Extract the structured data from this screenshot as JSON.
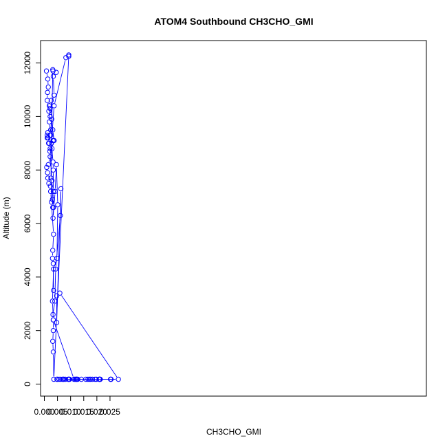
{
  "chart_data": {
    "type": "line",
    "title": "ATOM4 Southbound CH3CHO_GMI",
    "xlabel": "CH3CHO_GMI",
    "ylabel": "Altitude (m)",
    "xlim": [
      0.0,
      0.028
    ],
    "ylim": [
      0,
      12300
    ],
    "x_ticks": [
      "0.000",
      "0.005",
      "0.010",
      "0.015",
      "0.020",
      "0.025"
    ],
    "y_ticks": [
      "0",
      "2000",
      "4000",
      "6000",
      "8000",
      "10000",
      "12000"
    ],
    "grid": false,
    "legend": "none",
    "series_color": "#0000ff",
    "x": [
      0.0008,
      0.0013,
      0.0015,
      0.0012,
      0.0011,
      0.0017,
      0.0022,
      0.0019,
      0.0026,
      0.0028,
      0.0024,
      0.0021,
      0.0033,
      0.0037,
      0.0032,
      0.0036,
      0.0029,
      0.0033,
      0.0034,
      0.0034,
      0.0032,
      0.0025,
      0.0032,
      0.0033,
      0.0045,
      0.0034,
      0.0037,
      0.0022,
      0.0019,
      0.0024,
      0.0016,
      0.0013,
      0.0011,
      0.0014,
      0.0011,
      0.0018,
      0.0022,
      0.0021,
      0.0029,
      0.0031,
      0.0035,
      0.0033,
      0.0041,
      0.0046,
      0.0051,
      0.0048,
      0.0035,
      0.0031,
      0.0034,
      0.0034,
      0.0032,
      0.0034,
      0.0036,
      0.0093,
      0.0093,
      0.0082,
      0.0037,
      0.0027,
      0.0022,
      0.0015,
      0.0009,
      0.0012,
      0.0013,
      0.0017,
      0.0023,
      0.0024,
      0.0027,
      0.0035,
      0.0032,
      0.0031,
      0.0034,
      0.0035,
      0.0047,
      0.0047,
      0.0063,
      0.0061,
      0.0043,
      0.004,
      0.0033,
      0.0034,
      0.0113,
      0.008,
      0.0056,
      0.0049,
      0.0048,
      0.0062,
      0.0072,
      0.0069,
      0.0122,
      0.0158,
      0.0141,
      0.0198,
      0.0209,
      0.0183,
      0.0166,
      0.0127,
      0.0092,
      0.0091,
      0.0121,
      0.0193,
      0.0211,
      0.0253,
      0.0176,
      0.0096,
      0.0074,
      0.0117,
      0.0172,
      0.0211,
      0.0209,
      0.0252,
      0.0254,
      0.0213,
      0.0094,
      0.0124,
      0.0282,
      0.0059
    ],
    "y": [
      11700,
      11400,
      11100,
      10900,
      10600,
      10200,
      10000,
      10400,
      10600,
      9900,
      9500,
      9300,
      9100,
      9100,
      9500,
      9100,
      8800,
      8300,
      8000,
      7200,
      6600,
      7700,
      11750,
      11700,
      11650,
      11500,
      10800,
      10300,
      9800,
      9300,
      9000,
      9400,
      9300,
      9200,
      9200,
      9000,
      8800,
      8700,
      7600,
      6900,
      6600,
      6200,
      7200,
      8200,
      6700,
      4700,
      4300,
      3100,
      2400,
      2000,
      1600,
      1200,
      180,
      12300,
      12250,
      12200,
      10400,
      9000,
      8500,
      8200,
      8100,
      7900,
      7700,
      7500,
      7400,
      7200,
      6800,
      5600,
      5000,
      4700,
      4500,
      3500,
      3300,
      2300,
      7300,
      6300,
      4300,
      3100,
      2600,
      2400,
      180,
      180,
      180,
      180,
      180,
      180,
      180,
      180,
      180,
      180,
      180,
      180,
      180,
      180,
      180,
      180,
      180,
      180,
      180,
      180,
      180,
      180,
      180,
      180,
      180,
      180,
      180,
      180,
      180,
      180,
      180,
      180,
      180,
      180,
      180,
      3400
    ]
  }
}
